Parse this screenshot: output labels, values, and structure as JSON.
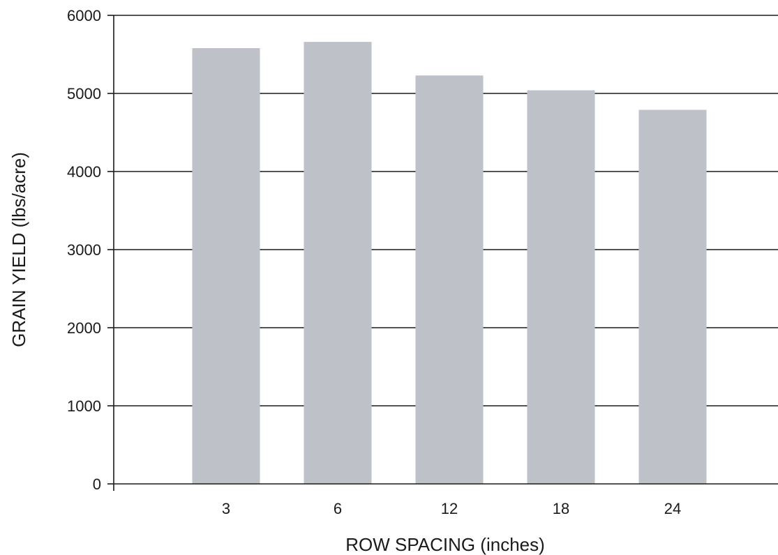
{
  "chart_data": {
    "type": "bar",
    "categories": [
      "3",
      "6",
      "12",
      "18",
      "24"
    ],
    "values": [
      5580,
      5660,
      5230,
      5040,
      4790
    ],
    "title": "",
    "xlabel": "ROW SPACING (inches)",
    "ylabel": "GRAIN YIELD (lbs/acre)",
    "ylim": [
      0,
      6000
    ],
    "yticks": [
      "0",
      "1000",
      "2000",
      "3000",
      "4000",
      "5000",
      "6000"
    ],
    "grid": true,
    "colors": {
      "bar": "#bfc1c9",
      "grid": "#1a1a1a",
      "axis": "#1a1a1a"
    }
  }
}
